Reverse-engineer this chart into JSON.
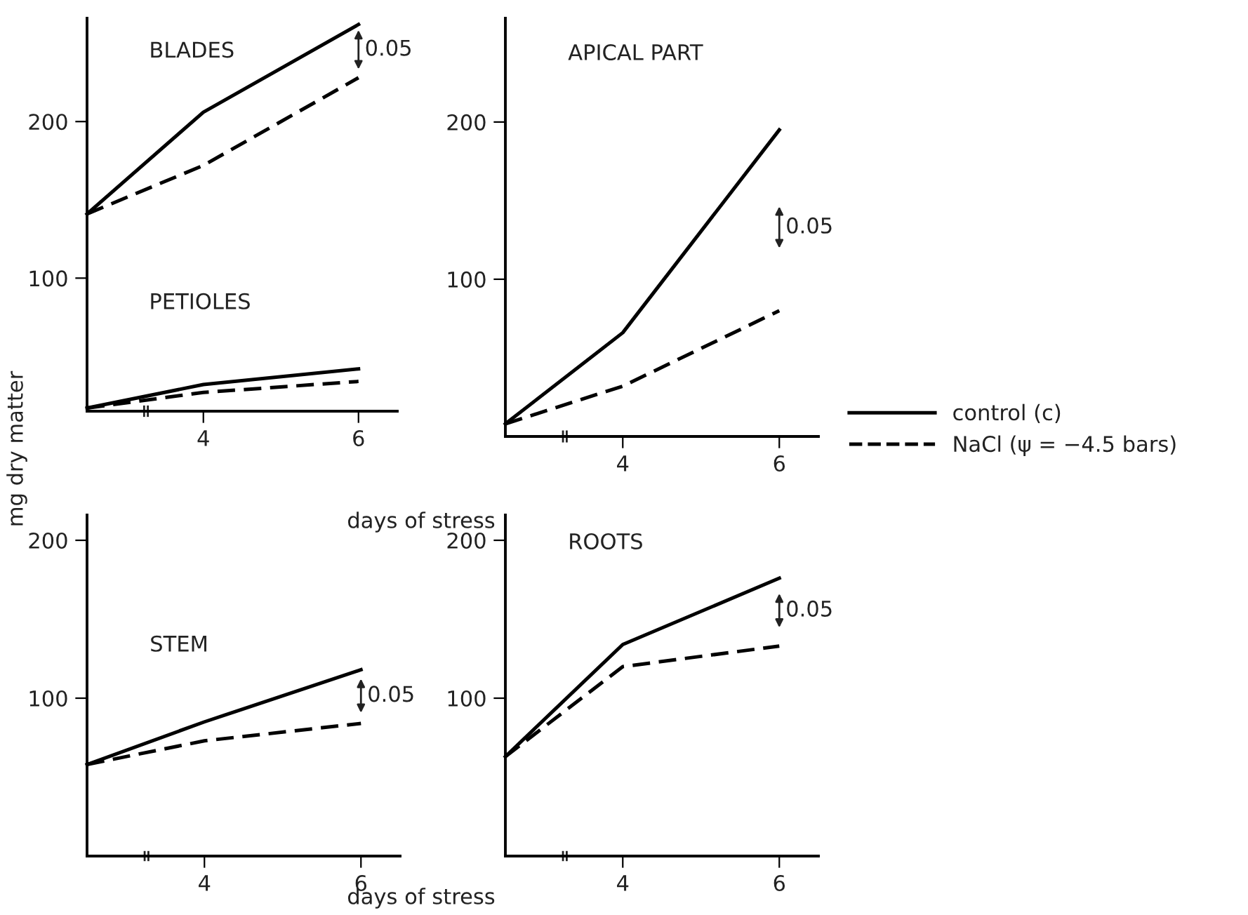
{
  "chart_data": [
    {
      "type": "line",
      "title": "BLADES",
      "annotations": [
        "PETIOLES",
        "0.05"
      ],
      "x": [
        2.5,
        4,
        6
      ],
      "xlim": [
        2.5,
        6.5
      ],
      "xticks": [
        4,
        6
      ],
      "ylim": [
        15,
        266
      ],
      "yticks": [
        100,
        200
      ],
      "ylabel": "mg dry matter",
      "xlabel": "days of stress",
      "legend": "right",
      "grid": false,
      "series": [
        {
          "name": "control (c)",
          "color": "#000000",
          "line_style": "solid",
          "values": [
            141,
            206,
            262
          ]
        },
        {
          "name": "NaCl (ψ = −4.5 bars)",
          "color": "#000000",
          "line_style": "dashed",
          "values": [
            141,
            172,
            228
          ]
        },
        {
          "color": "#000000",
          "line_style": "solid",
          "values": [
            17,
            32,
            42
          ]
        },
        {
          "color": "#000000",
          "line_style": "dashed",
          "values": [
            17,
            27,
            34
          ]
        }
      ]
    },
    {
      "type": "line",
      "title": "STEM",
      "annotations": [
        "0.05"
      ],
      "x": [
        2.5,
        4,
        6
      ],
      "xlim": [
        2.5,
        6.5
      ],
      "xticks": [
        4,
        6
      ],
      "ylim": [
        0,
        216
      ],
      "yticks": [
        100,
        200
      ],
      "xlabel": "days of stress",
      "grid": false,
      "series": [
        {
          "color": "#000000",
          "line_style": "solid",
          "values": [
            58,
            85,
            118
          ]
        },
        {
          "color": "#000000",
          "line_style": "dashed",
          "values": [
            58,
            73,
            84
          ]
        }
      ]
    },
    {
      "type": "line",
      "title": "ROOTS",
      "annotations": [
        "0.05"
      ],
      "x": [
        2.5,
        4,
        6
      ],
      "xlim": [
        2.5,
        6.5
      ],
      "xticks": [
        4,
        6
      ],
      "ylim": [
        0,
        216
      ],
      "yticks": [
        100,
        200
      ],
      "grid": false,
      "series": [
        {
          "color": "#000000",
          "line_style": "solid",
          "values": [
            63,
            134,
            176
          ]
        },
        {
          "color": "#000000",
          "line_style": "dashed",
          "values": [
            63,
            120,
            133
          ]
        }
      ]
    },
    {
      "type": "line",
      "title": "APICAL PART",
      "annotations": [
        "0.05"
      ],
      "x": [
        2.5,
        4,
        6
      ],
      "xlim": [
        2.5,
        6.5
      ],
      "xticks": [
        4,
        6
      ],
      "ylim": [
        0,
        266
      ],
      "yticks": [
        100,
        200
      ],
      "grid": false,
      "series": [
        {
          "color": "#000000",
          "line_style": "solid",
          "values": [
            8,
            66,
            195
          ]
        },
        {
          "color": "#000000",
          "line_style": "dashed",
          "values": [
            8,
            32,
            80
          ]
        }
      ]
    }
  ]
}
